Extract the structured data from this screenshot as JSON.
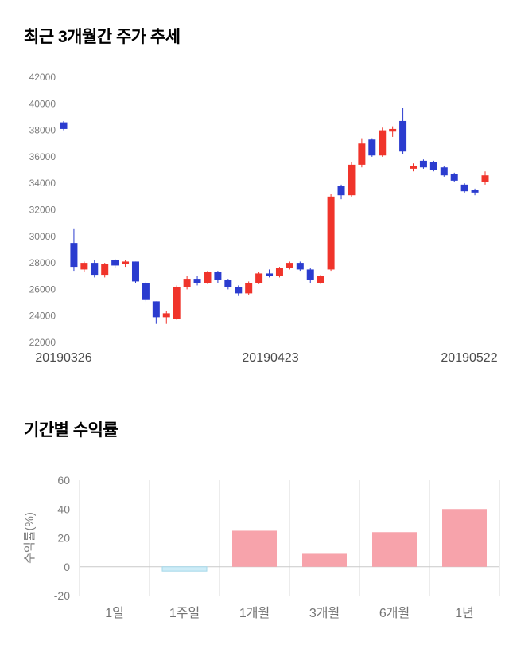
{
  "page": {
    "background": "#ffffff"
  },
  "chart_data": [
    {
      "type": "candlestick",
      "title": "최근 3개월간 주가 추세",
      "x_labels": [
        "20190326",
        "20190423",
        "20190522"
      ],
      "ylim": [
        22000,
        42000
      ],
      "y_ticks": [
        42000,
        40000,
        38000,
        36000,
        34000,
        32000,
        30000,
        28000,
        26000,
        24000,
        22000
      ],
      "up_color": "#f0342b",
      "down_color": "#2b3ccf",
      "ohlc_order": "open,high,low,close",
      "candles": [
        [
          38600,
          38700,
          38000,
          38100
        ],
        [
          29500,
          30600,
          27400,
          27700
        ],
        [
          27500,
          28100,
          27300,
          28000
        ],
        [
          28000,
          28200,
          26900,
          27100
        ],
        [
          27100,
          28000,
          26900,
          27900
        ],
        [
          28200,
          28300,
          27600,
          27800
        ],
        [
          27900,
          28200,
          27700,
          28100
        ],
        [
          28100,
          28100,
          26500,
          26600
        ],
        [
          26500,
          26600,
          25100,
          25200
        ],
        [
          25100,
          25100,
          23400,
          23900
        ],
        [
          23900,
          24400,
          23400,
          24200
        ],
        [
          23800,
          26300,
          23700,
          26200
        ],
        [
          26200,
          27000,
          26000,
          26800
        ],
        [
          26800,
          27000,
          26300,
          26500
        ],
        [
          26500,
          27400,
          26400,
          27300
        ],
        [
          27300,
          27400,
          26500,
          26700
        ],
        [
          26700,
          26800,
          26000,
          26200
        ],
        [
          26200,
          26300,
          25500,
          25700
        ],
        [
          25700,
          26600,
          25600,
          26500
        ],
        [
          26500,
          27300,
          26400,
          27200
        ],
        [
          27200,
          27500,
          26900,
          27000
        ],
        [
          27000,
          27700,
          26900,
          27600
        ],
        [
          27600,
          28100,
          27500,
          28000
        ],
        [
          28000,
          28100,
          27400,
          27500
        ],
        [
          27500,
          27600,
          26500,
          26700
        ],
        [
          26500,
          27100,
          26400,
          27000
        ],
        [
          27500,
          33200,
          27400,
          33000
        ],
        [
          33800,
          33900,
          32800,
          33100
        ],
        [
          33100,
          35600,
          33000,
          35400
        ],
        [
          35400,
          37400,
          35200,
          37000
        ],
        [
          37300,
          37400,
          36000,
          36100
        ],
        [
          36100,
          38200,
          36000,
          38000
        ],
        [
          37900,
          38300,
          37500,
          38100
        ],
        [
          38700,
          39700,
          36200,
          36400
        ],
        [
          35100,
          35500,
          34900,
          35300
        ],
        [
          35700,
          35800,
          35100,
          35200
        ],
        [
          35600,
          35700,
          34900,
          35000
        ],
        [
          35200,
          35300,
          34500,
          34600
        ],
        [
          34700,
          34800,
          34100,
          34200
        ],
        [
          33900,
          34000,
          33300,
          33400
        ],
        [
          33500,
          33600,
          33100,
          33300
        ],
        [
          34100,
          34900,
          33900,
          34600
        ]
      ]
    },
    {
      "type": "bar",
      "title": "기간별 수익률",
      "ylabel": "수익률(%)",
      "categories": [
        "1일",
        "1주일",
        "1개월",
        "3개월",
        "6개월",
        "1년"
      ],
      "values": [
        0,
        -3,
        25,
        9,
        24,
        40
      ],
      "ylim": [
        -20,
        60
      ],
      "y_ticks": [
        60,
        40,
        20,
        0,
        -20
      ],
      "bar_color": "#f7a3ab",
      "bar_color_negative": "#cdecf7",
      "negative_bar_border": "#a5d8ea",
      "grid": "vertical",
      "legend": "none"
    }
  ]
}
